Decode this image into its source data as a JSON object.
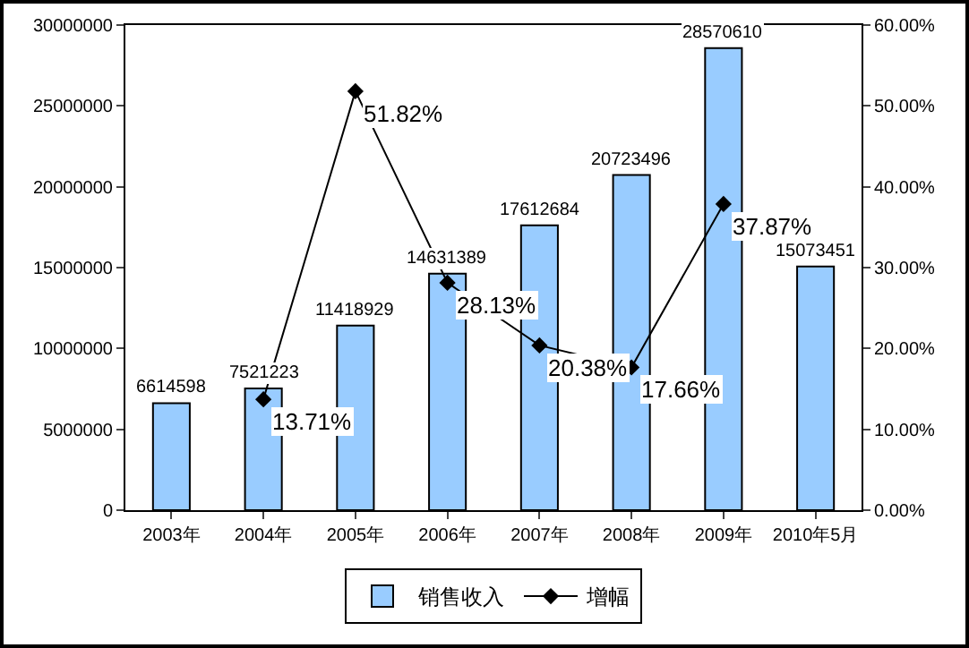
{
  "chart_data": {
    "type": "bar",
    "categories": [
      "2003年",
      "2004年",
      "2005年",
      "2006年",
      "2007年",
      "2008年",
      "2009年",
      "2010年5月"
    ],
    "series": [
      {
        "name": "销售收入",
        "color": "#99ccff",
        "values": [
          6614598,
          7521223,
          11418929,
          14631389,
          17612684,
          20723496,
          28570610,
          15073451
        ],
        "value_labels": [
          "6614598",
          "7521223",
          "11418929",
          "14631389",
          "17612684",
          "20723496",
          "28570610",
          "15073451"
        ]
      },
      {
        "name": "增幅",
        "type": "line",
        "axis": "y2",
        "color": "#000000",
        "values": [
          null,
          13.71,
          51.82,
          28.13,
          20.38,
          17.66,
          37.87,
          null
        ],
        "value_labels": [
          null,
          "13.71%",
          "51.82%",
          "28.13%",
          "20.38%",
          "17.66%",
          "37.87%",
          null
        ]
      }
    ],
    "ylim": [
      0,
      30000000
    ],
    "yticks": [
      0,
      5000000,
      10000000,
      15000000,
      20000000,
      25000000,
      30000000
    ],
    "y2lim": [
      0,
      60
    ],
    "y2ticks": [
      {
        "value": 0,
        "label": "0.00%"
      },
      {
        "value": 10,
        "label": "10.00%"
      },
      {
        "value": 20,
        "label": "20.00%"
      },
      {
        "value": 30,
        "label": "30.00%"
      },
      {
        "value": 40,
        "label": "40.00%"
      },
      {
        "value": 50,
        "label": "50.00%"
      },
      {
        "value": 60,
        "label": "60.00%"
      }
    ],
    "marker": "diamond",
    "grid": false,
    "legend": "bottom"
  }
}
